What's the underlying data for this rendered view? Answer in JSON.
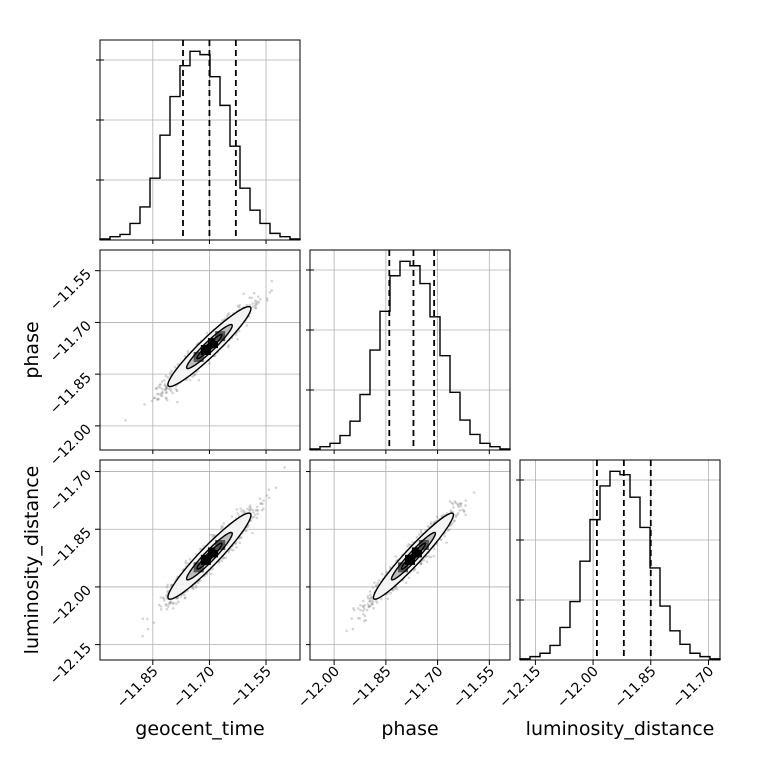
{
  "chart_data": {
    "type": "scatter",
    "subtype": "corner-plot",
    "parameters": [
      "geocent_time",
      "phase",
      "luminosity_distance"
    ],
    "axis_labels": {
      "geocent_time": "geocent_time",
      "phase": "phase",
      "luminosity_distance": "luminosity_distance"
    },
    "ranges": {
      "geocent_time": [
        -11.99,
        -11.46
      ],
      "phase": [
        -12.07,
        -11.49
      ],
      "luminosity_distance": [
        -12.19,
        -11.67
      ]
    },
    "ticks": {
      "geocent_time": {
        "values": [
          -11.85,
          -11.7,
          -11.55
        ],
        "labels": [
          "−11.85",
          "−11.70",
          "−11.55"
        ]
      },
      "phase": {
        "values": [
          -12.0,
          -11.85,
          -11.7,
          -11.55
        ],
        "labels": [
          "−12.00",
          "−11.85",
          "−11.70",
          "−11.55"
        ]
      },
      "luminosity_distance": {
        "values": [
          -12.15,
          -12.0,
          -11.85,
          -11.7
        ],
        "labels": [
          "−12.15",
          "−12.00",
          "−11.85",
          "−11.70"
        ]
      }
    },
    "quantiles": {
      "geocent_time": [
        -11.77,
        -11.7,
        -11.63
      ],
      "phase": [
        -11.84,
        -11.77,
        -11.71
      ],
      "luminosity_distance": [
        -11.99,
        -11.92,
        -11.85
      ]
    },
    "histograms": {
      "geocent_time": {
        "edges": [
          -11.99,
          -11.9635,
          -11.937,
          -11.9105,
          -11.884,
          -11.8575,
          -11.831,
          -11.8045,
          -11.778,
          -11.7515,
          -11.725,
          -11.6985,
          -11.672,
          -11.6455,
          -11.619,
          -11.5925,
          -11.566,
          -11.5395,
          -11.513,
          -11.4865,
          -11.46
        ],
        "counts": [
          1,
          3,
          5,
          15,
          30,
          56,
          95,
          130,
          158,
          171,
          168,
          148,
          122,
          85,
          47,
          27,
          15,
          6,
          3,
          1
        ]
      },
      "phase": {
        "edges": [
          -12.07,
          -12.041,
          -12.012,
          -11.983,
          -11.954,
          -11.925,
          -11.896,
          -11.867,
          -11.838,
          -11.809,
          -11.78,
          -11.751,
          -11.722,
          -11.693,
          -11.664,
          -11.635,
          -11.606,
          -11.577,
          -11.548,
          -11.519,
          -11.49
        ],
        "counts": [
          1,
          3,
          6,
          13,
          26,
          50,
          90,
          125,
          157,
          170,
          166,
          150,
          120,
          85,
          52,
          27,
          14,
          6,
          3,
          1
        ]
      },
      "luminosity_distance": {
        "edges": [
          -12.19,
          -12.164,
          -12.138,
          -12.112,
          -12.086,
          -12.06,
          -12.034,
          -12.008,
          -11.982,
          -11.956,
          -11.93,
          -11.904,
          -11.878,
          -11.852,
          -11.826,
          -11.8,
          -11.774,
          -11.748,
          -11.722,
          -11.696,
          -11.67
        ],
        "counts": [
          1,
          3,
          6,
          13,
          29,
          52,
          88,
          125,
          155,
          168,
          165,
          145,
          118,
          82,
          48,
          26,
          14,
          6,
          3,
          1
        ]
      }
    },
    "joint": {
      "phase_vs_geocent_time": {
        "mean": [
          -11.7,
          -11.77
        ],
        "std": [
          0.055,
          0.058
        ],
        "corr": 0.95
      },
      "luminosity_distance_vs_geocent_time": {
        "mean": [
          -11.7,
          -11.92
        ],
        "std": [
          0.055,
          0.056
        ],
        "corr": 0.95
      },
      "luminosity_distance_vs_phase": {
        "mean": [
          -11.77,
          -11.92
        ],
        "std": [
          0.058,
          0.056
        ],
        "corr": 0.96
      }
    },
    "scatter_points_per_panel": 1200,
    "grid": true,
    "colors": {
      "line": "#000000",
      "points": "#888888",
      "grid": "#b0b0b0"
    }
  }
}
